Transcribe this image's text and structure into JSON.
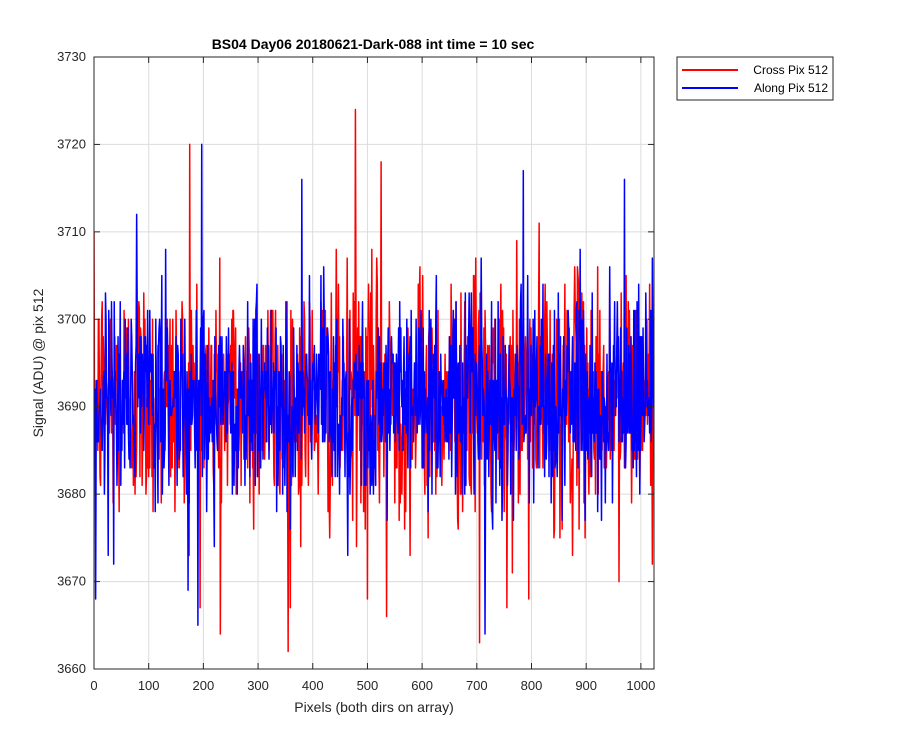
{
  "chart_data": {
    "type": "line",
    "title": "BS04 Day06 20180621-Dark-088 int time = 10 sec",
    "xlabel": "Pixels (both dirs on array)",
    "ylabel": "Signal (ADU) @ pix 512",
    "xlim": [
      0,
      1024
    ],
    "ylim": [
      3660,
      3730
    ],
    "xticks": [
      0,
      100,
      200,
      300,
      400,
      500,
      600,
      700,
      800,
      900,
      1000
    ],
    "yticks": [
      3660,
      3670,
      3680,
      3690,
      3700,
      3710,
      3720,
      3730
    ],
    "grid": true,
    "legend_position": "outside-top-right",
    "series": [
      {
        "name": "Cross Pix 512",
        "color": "#ff0000",
        "n_points": 1024,
        "mean": 3691,
        "std": 7,
        "notable_points": [
          {
            "x": 175,
            "y": 3720
          },
          {
            "x": 231,
            "y": 3664
          },
          {
            "x": 355,
            "y": 3662
          },
          {
            "x": 478,
            "y": 3724
          },
          {
            "x": 500,
            "y": 3668
          },
          {
            "x": 525,
            "y": 3718
          },
          {
            "x": 535,
            "y": 3666
          },
          {
            "x": 705,
            "y": 3663
          },
          {
            "x": 755,
            "y": 3667
          },
          {
            "x": 795,
            "y": 3668
          },
          {
            "x": 960,
            "y": 3670
          }
        ]
      },
      {
        "name": "Along Pix 512",
        "color": "#0000ff",
        "n_points": 1024,
        "mean": 3691,
        "std": 6,
        "notable_points": [
          {
            "x": 3,
            "y": 3668
          },
          {
            "x": 190,
            "y": 3665
          },
          {
            "x": 197,
            "y": 3720
          },
          {
            "x": 380,
            "y": 3716
          },
          {
            "x": 715,
            "y": 3664
          },
          {
            "x": 785,
            "y": 3717
          },
          {
            "x": 970,
            "y": 3716
          }
        ]
      }
    ]
  }
}
